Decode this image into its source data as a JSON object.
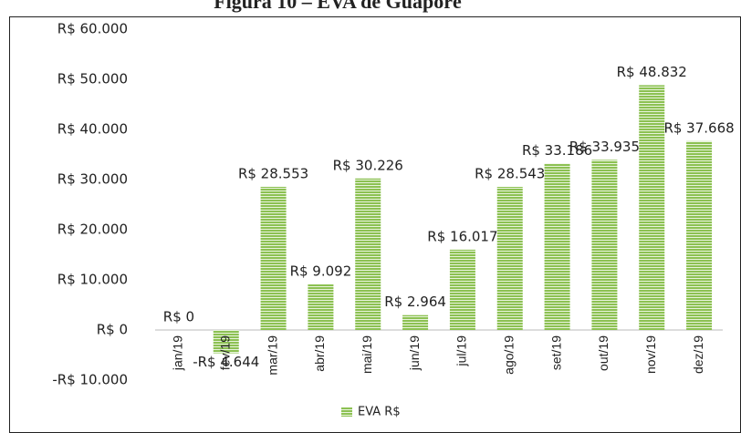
{
  "chart_data": {
    "type": "bar",
    "title": "Figura 10 – EVA de Guaporé",
    "categories": [
      "jan/19",
      "fev/19",
      "mar/19",
      "abr/19",
      "mai/19",
      "jun/19",
      "jul/19",
      "ago/19",
      "set/19",
      "out/19",
      "nov/19",
      "dez/19"
    ],
    "series": [
      {
        "name": "EVA R$",
        "color": "#8cc152",
        "values": [
          0,
          -4644,
          28553,
          9092,
          30226,
          2964,
          16017,
          28543,
          33186,
          33935,
          48832,
          37668
        ],
        "value_labels": [
          "R$ 0",
          "-R$ 4.644",
          "R$ 28.553",
          "R$ 9.092",
          "R$ 30.226",
          "R$ 2.964",
          "R$ 16.017",
          "R$ 28.543",
          "R$ 33.186",
          "R$ 33.935",
          "R$ 48.832",
          "R$ 37.668"
        ]
      }
    ],
    "ylim": [
      -10000,
      60000
    ],
    "yticks": [
      {
        "value": -10000,
        "label": "-R$ 10.000"
      },
      {
        "value": 0,
        "label": "R$ 0"
      },
      {
        "value": 10000,
        "label": "R$ 10.000"
      },
      {
        "value": 20000,
        "label": "R$ 20.000"
      },
      {
        "value": 30000,
        "label": "R$ 30.000"
      },
      {
        "value": 40000,
        "label": "R$ 40.000"
      },
      {
        "value": 50000,
        "label": "R$ 50.000"
      },
      {
        "value": 60000,
        "label": "R$ 60.000"
      }
    ],
    "grid": false,
    "legend": "bottom"
  }
}
